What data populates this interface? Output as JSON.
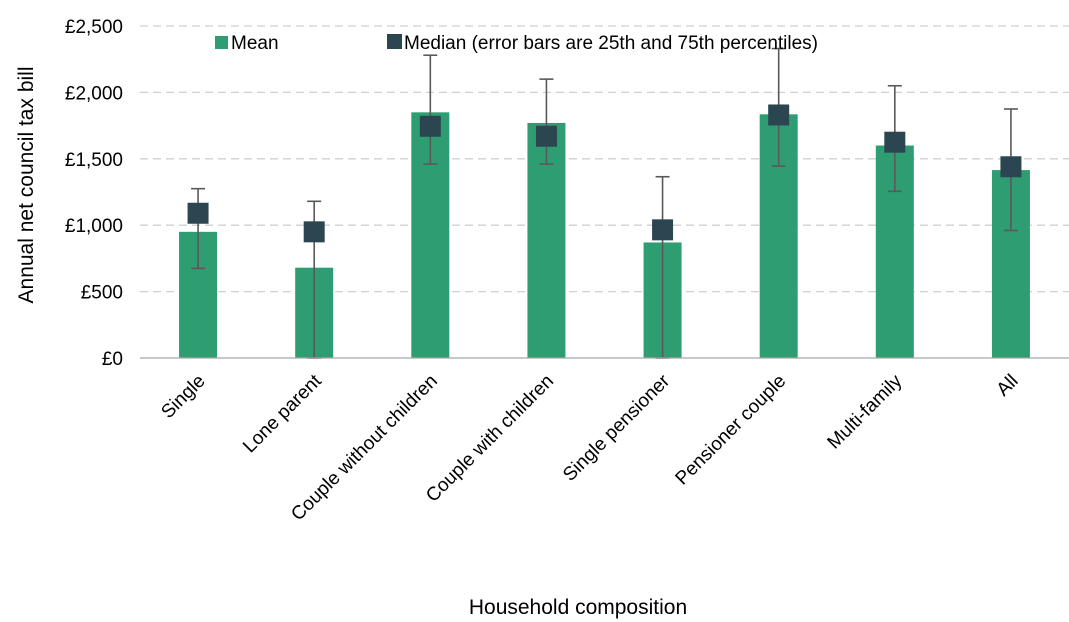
{
  "colors": {
    "mean": "#2e9e72",
    "median": "#2b4650",
    "error": "#595959",
    "grid": "#d0d0d0",
    "axis": "#a6a6a6"
  },
  "chart_data": {
    "type": "bar",
    "title": "",
    "xlabel": "Household composition",
    "ylabel": "Annual net council tax bill",
    "ylim": [
      0,
      2500
    ],
    "yticks": [
      0,
      500,
      1000,
      1500,
      2000,
      2500
    ],
    "ytick_labels": [
      "£0",
      "£500",
      "£1,000",
      "£1,500",
      "£2,000",
      "£2,500"
    ],
    "grid": true,
    "legend_position": "top",
    "categories": [
      "Single",
      "Lone parent",
      "Couple without children",
      "Couple with children",
      "Single pensioner",
      "Pensioner couple",
      "Multi-family",
      "All"
    ],
    "series": [
      {
        "name": "Mean",
        "type": "bar",
        "values": [
          950,
          680,
          1850,
          1770,
          870,
          1835,
          1600,
          1415
        ]
      },
      {
        "name": "Median (error bars are 25th and 75th percentiles)",
        "type": "marker",
        "values": [
          1090,
          950,
          1745,
          1670,
          965,
          1830,
          1625,
          1440
        ],
        "p25": [
          675,
          0,
          1460,
          1460,
          0,
          1445,
          1255,
          960
        ],
        "p75": [
          1275,
          1180,
          2280,
          2100,
          1365,
          2330,
          2050,
          1875
        ]
      }
    ]
  }
}
